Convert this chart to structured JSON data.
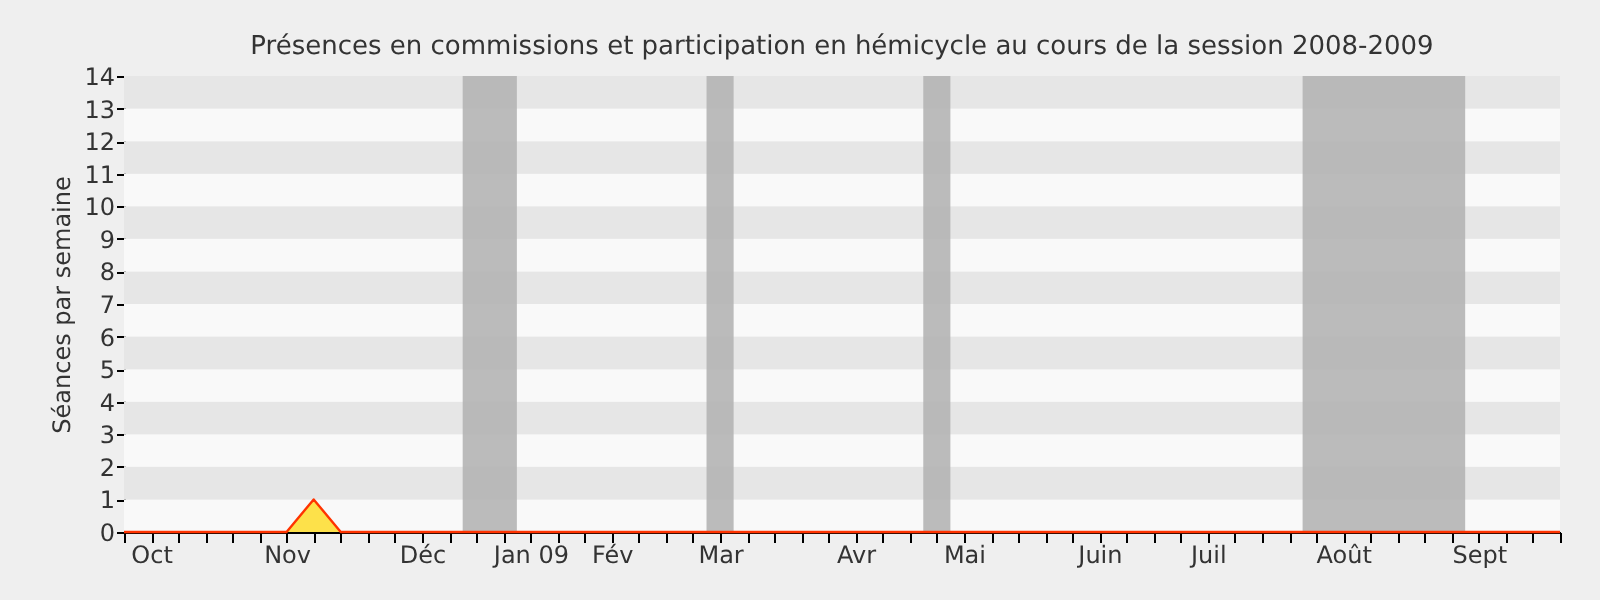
{
  "chart_data": {
    "type": "area",
    "title": "Présences en commissions et participation en hémicycle au cours de la session 2008-2009",
    "ylabel": "Séances par semaine",
    "categories": [
      null,
      "Oct",
      null,
      null,
      null,
      null,
      "Nov",
      null,
      null,
      null,
      null,
      "Déc",
      null,
      null,
      null,
      "Jan 09",
      null,
      null,
      "Fév",
      null,
      null,
      null,
      "Mar",
      null,
      null,
      null,
      null,
      "Avr",
      null,
      null,
      null,
      "Mai",
      null,
      null,
      null,
      null,
      "Juin",
      null,
      null,
      null,
      "Juil",
      null,
      null,
      null,
      null,
      "Août",
      null,
      null,
      null,
      null,
      "Sept",
      null,
      null,
      null
    ],
    "series": [
      {
        "color": "#ffd700",
        "values": [
          0,
          0,
          0,
          0,
          0,
          0,
          0,
          1,
          0,
          0,
          0,
          0,
          0,
          0,
          0,
          0,
          0,
          0,
          0,
          0,
          0,
          0,
          0,
          0,
          0,
          0,
          0,
          0,
          0,
          0,
          0,
          0,
          0,
          0,
          0,
          0,
          0,
          0,
          0,
          0,
          0,
          0,
          0,
          0,
          0,
          0,
          0,
          0,
          0,
          0,
          0,
          0,
          0,
          0
        ]
      }
    ],
    "ylim": [
      0,
      14
    ],
    "yticks": [
      0,
      1,
      2,
      3,
      4,
      5,
      6,
      7,
      8,
      9,
      10,
      11,
      12,
      13,
      14
    ]
  }
}
